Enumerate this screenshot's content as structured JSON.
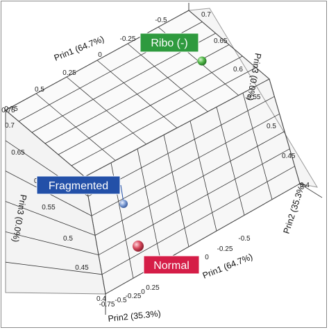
{
  "chart_data": {
    "type": "scatter3d",
    "axes": {
      "x": {
        "label": "Prin1 (64.7%)",
        "range": [
          -0.5,
          0.75
        ],
        "ticks": [
          "-0.5",
          "-0.25",
          "0",
          "0.25",
          "0.5",
          "0.75"
        ],
        "ticks_lower": [
          "-0.5",
          "-0.25",
          "0"
        ]
      },
      "y": {
        "label": "Prin2 (35.3%)",
        "range": [
          -0.75,
          0.75
        ],
        "ticks_right": [
          "-0.75",
          "-0.5",
          "-0.25",
          "0",
          "0.25",
          "0.5",
          "0.75"
        ]
      },
      "z": {
        "label": "Prin3 (0.0%)",
        "range": [
          0.4,
          0.7
        ],
        "ticks": [
          "0.4",
          "0.45",
          "0.5",
          "0.55",
          "0.6",
          "0.65",
          "0.7"
        ]
      }
    },
    "points": [
      {
        "label": "Ribo (-)",
        "color": "#52b848",
        "label_color": "#2e9a3e"
      },
      {
        "label": "Fragmented",
        "color": "#7f9fd6",
        "label_color": "#2350a8"
      },
      {
        "label": "Normal",
        "color": "#d84a5e",
        "label_color": "#d51d47"
      }
    ],
    "grid": true
  }
}
